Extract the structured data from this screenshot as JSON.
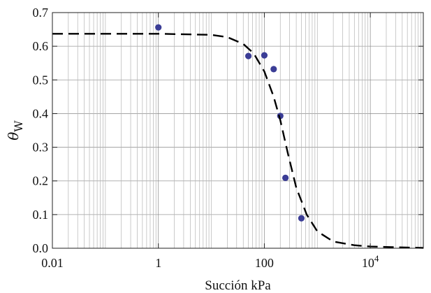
{
  "chart_data": {
    "type": "scatter",
    "title": "",
    "xlabel": "Succión kPa",
    "ylabel": "θw",
    "ylabel_parts": [
      "θ",
      "W"
    ],
    "x_scale": "log",
    "xlim": [
      0.01,
      100000
    ],
    "ylim": [
      0,
      0.7
    ],
    "grid": true,
    "x_ticks": [
      {
        "value": 0.01,
        "label": "0.01"
      },
      {
        "value": 1,
        "label": "1"
      },
      {
        "value": 100,
        "label": "100"
      },
      {
        "value": 10000,
        "label": "10",
        "exponent": "4"
      }
    ],
    "y_ticks": [
      {
        "value": 0.0,
        "label": "0.0"
      },
      {
        "value": 0.1,
        "label": "0.1"
      },
      {
        "value": 0.2,
        "label": "0.2"
      },
      {
        "value": 0.3,
        "label": "0.3"
      },
      {
        "value": 0.4,
        "label": "0.4"
      },
      {
        "value": 0.5,
        "label": "0.5"
      },
      {
        "value": 0.6,
        "label": "0.6"
      },
      {
        "value": 0.7,
        "label": "0.7"
      }
    ],
    "series": [
      {
        "kind": "scatter",
        "color": "#3b3d96",
        "points": [
          {
            "x": 1,
            "y": 0.656
          },
          {
            "x": 50,
            "y": 0.571
          },
          {
            "x": 100,
            "y": 0.573
          },
          {
            "x": 150,
            "y": 0.532
          },
          {
            "x": 200,
            "y": 0.393
          },
          {
            "x": 250,
            "y": 0.209
          },
          {
            "x": 500,
            "y": 0.089
          }
        ]
      },
      {
        "kind": "line",
        "style": "dashed",
        "color": "#000000",
        "points": [
          {
            "x": 0.01,
            "y": 0.637
          },
          {
            "x": 1,
            "y": 0.637
          },
          {
            "x": 10,
            "y": 0.634
          },
          {
            "x": 20,
            "y": 0.627
          },
          {
            "x": 40,
            "y": 0.607
          },
          {
            "x": 63,
            "y": 0.579
          },
          {
            "x": 100,
            "y": 0.525
          },
          {
            "x": 150,
            "y": 0.45
          },
          {
            "x": 200,
            "y": 0.38
          },
          {
            "x": 280,
            "y": 0.28
          },
          {
            "x": 400,
            "y": 0.18
          },
          {
            "x": 630,
            "y": 0.1
          },
          {
            "x": 1000,
            "y": 0.05
          },
          {
            "x": 2000,
            "y": 0.02
          },
          {
            "x": 5000,
            "y": 0.009
          },
          {
            "x": 10000,
            "y": 0.005
          },
          {
            "x": 100000,
            "y": 0.001
          }
        ]
      }
    ]
  }
}
